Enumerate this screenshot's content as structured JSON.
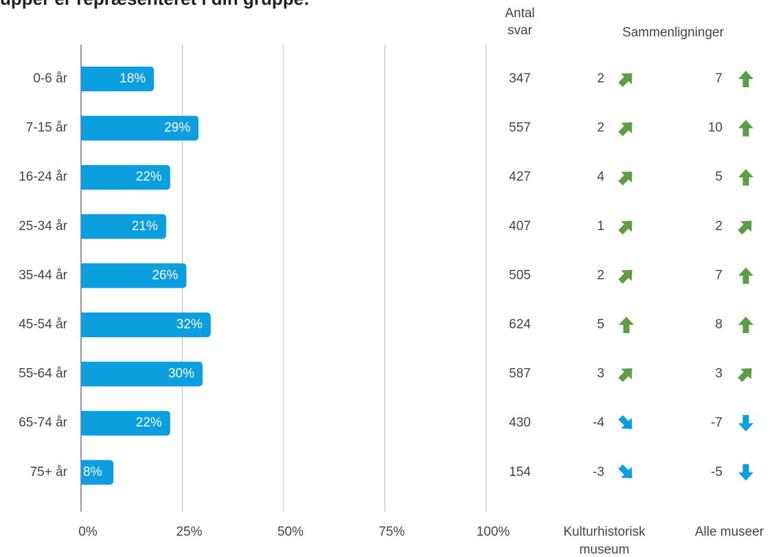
{
  "chart_data": {
    "type": "bar",
    "orientation": "horizontal",
    "title": "upper er repræsenteret i din gruppe:",
    "categories": [
      "0-6 år",
      "7-15 år",
      "16-24 år",
      "25-34 år",
      "35-44 år",
      "45-54 år",
      "55-64 år",
      "65-74 år",
      "75+ år"
    ],
    "values": [
      18,
      29,
      22,
      21,
      26,
      32,
      30,
      22,
      8
    ],
    "value_labels": [
      "18%",
      "29%",
      "22%",
      "21%",
      "26%",
      "32%",
      "30%",
      "22%",
      "8%"
    ],
    "color": "#0c9fe0",
    "xlim": [
      0,
      100
    ],
    "xticks": [
      {
        "value": 0,
        "label": "0%"
      },
      {
        "value": 25,
        "label": "25%"
      },
      {
        "value": 50,
        "label": "50%"
      },
      {
        "value": 75,
        "label": "75%"
      },
      {
        "value": 100,
        "label": "100%"
      }
    ],
    "grid": true,
    "count_header": [
      "Antal",
      "svar"
    ],
    "counts": [
      347,
      557,
      427,
      407,
      505,
      624,
      587,
      430,
      154
    ],
    "comparison_header": "Sammenligninger",
    "comparisons": [
      {
        "name": [
          "Kulturhistorisk",
          "museum"
        ],
        "values": [
          2,
          2,
          4,
          1,
          2,
          5,
          3,
          -4,
          -3
        ],
        "arrows": [
          "up-right",
          "up-right",
          "up-right",
          "up-right",
          "up-right",
          "up",
          "up-right",
          "down-right",
          "down-right"
        ]
      },
      {
        "name": [
          "Alle museer"
        ],
        "values": [
          7,
          10,
          5,
          2,
          7,
          8,
          3,
          -7,
          -5
        ],
        "arrows": [
          "up",
          "up",
          "up",
          "up-right",
          "up",
          "up",
          "up-right",
          "down",
          "down"
        ]
      }
    ],
    "arrow_colors": {
      "up": "#5b9e44",
      "up-right": "#5b9e44",
      "down-right": "#0c9fe0",
      "down": "#0c9fe0"
    }
  }
}
